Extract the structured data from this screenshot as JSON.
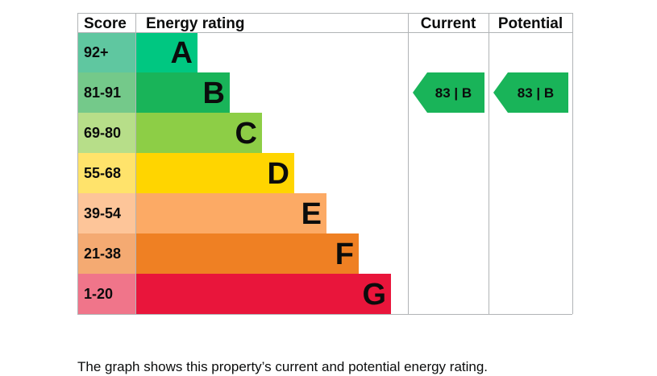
{
  "chart_data": {
    "type": "table",
    "columns": [
      "Score",
      "Energy rating",
      "Current",
      "Potential"
    ],
    "bands": [
      {
        "score": "92+",
        "rating": "A",
        "color": "#00c781",
        "score_color": "#5fc7a0",
        "relative_length": 1
      },
      {
        "score": "81-91",
        "rating": "B",
        "color": "#19b459",
        "score_color": "#74c98a",
        "relative_length": 2
      },
      {
        "score": "69-80",
        "rating": "C",
        "color": "#8dce46",
        "score_color": "#b7de89",
        "relative_length": 3
      },
      {
        "score": "55-68",
        "rating": "D",
        "color": "#ffd500",
        "score_color": "#ffe36b",
        "relative_length": 4
      },
      {
        "score": "39-54",
        "rating": "E",
        "color": "#fcaa65",
        "score_color": "#fdc599",
        "relative_length": 5
      },
      {
        "score": "21-38",
        "rating": "F",
        "color": "#ef8023",
        "score_color": "#f4aa72",
        "relative_length": 6
      },
      {
        "score": "1-20",
        "rating": "G",
        "color": "#e9153b",
        "score_color": "#f0758a",
        "relative_length": 7
      }
    ],
    "current": {
      "value": 83,
      "rating": "B",
      "label": "83 | B",
      "color": "#19b459"
    },
    "potential": {
      "value": 83,
      "rating": "B",
      "label": "83 | B",
      "color": "#19b459"
    },
    "grid_color": "#b1b4b6"
  },
  "caption": "The graph shows this property’s current and potential energy rating."
}
